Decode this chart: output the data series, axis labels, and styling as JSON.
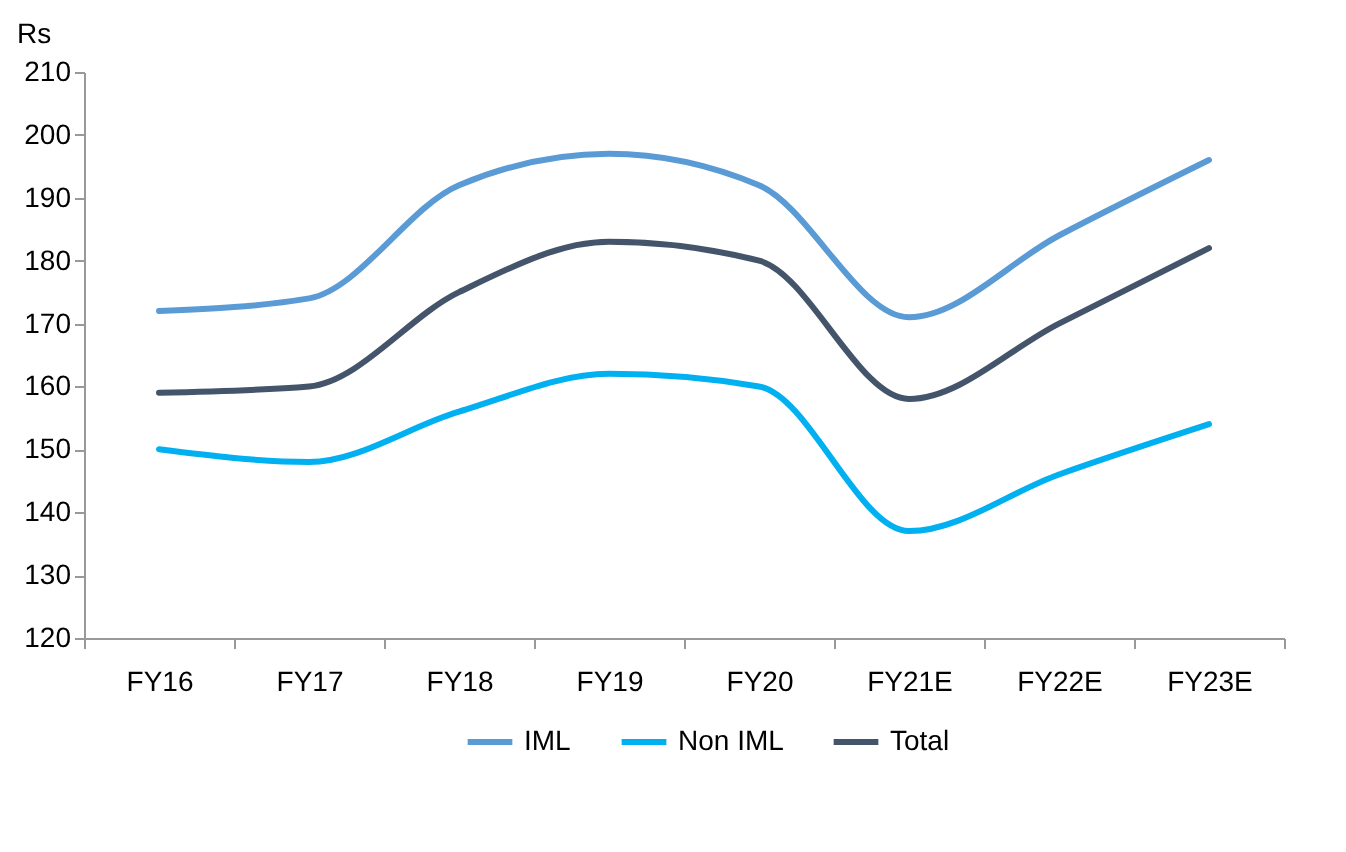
{
  "chart_data": {
    "type": "line",
    "ylabel": "Rs",
    "categories": [
      "FY16",
      "FY17",
      "FY18",
      "FY19",
      "FY20",
      "FY21E",
      "FY22E",
      "FY23E"
    ],
    "series": [
      {
        "name": "IML",
        "color": "#5b9bd5",
        "values": [
          172,
          174,
          192,
          197,
          192,
          171,
          184,
          196
        ]
      },
      {
        "name": "Non IML",
        "color": "#00b0f0",
        "values": [
          150,
          148,
          156,
          162,
          160,
          137,
          146,
          154
        ]
      },
      {
        "name": "Total",
        "color": "#44546a",
        "values": [
          159,
          160,
          175,
          183,
          180,
          158,
          170,
          182
        ]
      }
    ],
    "ylim": [
      120,
      210
    ],
    "yticks": [
      120,
      130,
      140,
      150,
      160,
      170,
      180,
      190,
      200,
      210
    ],
    "grid": false,
    "legend": "bottom",
    "marker": "none",
    "line_style": "solid"
  }
}
